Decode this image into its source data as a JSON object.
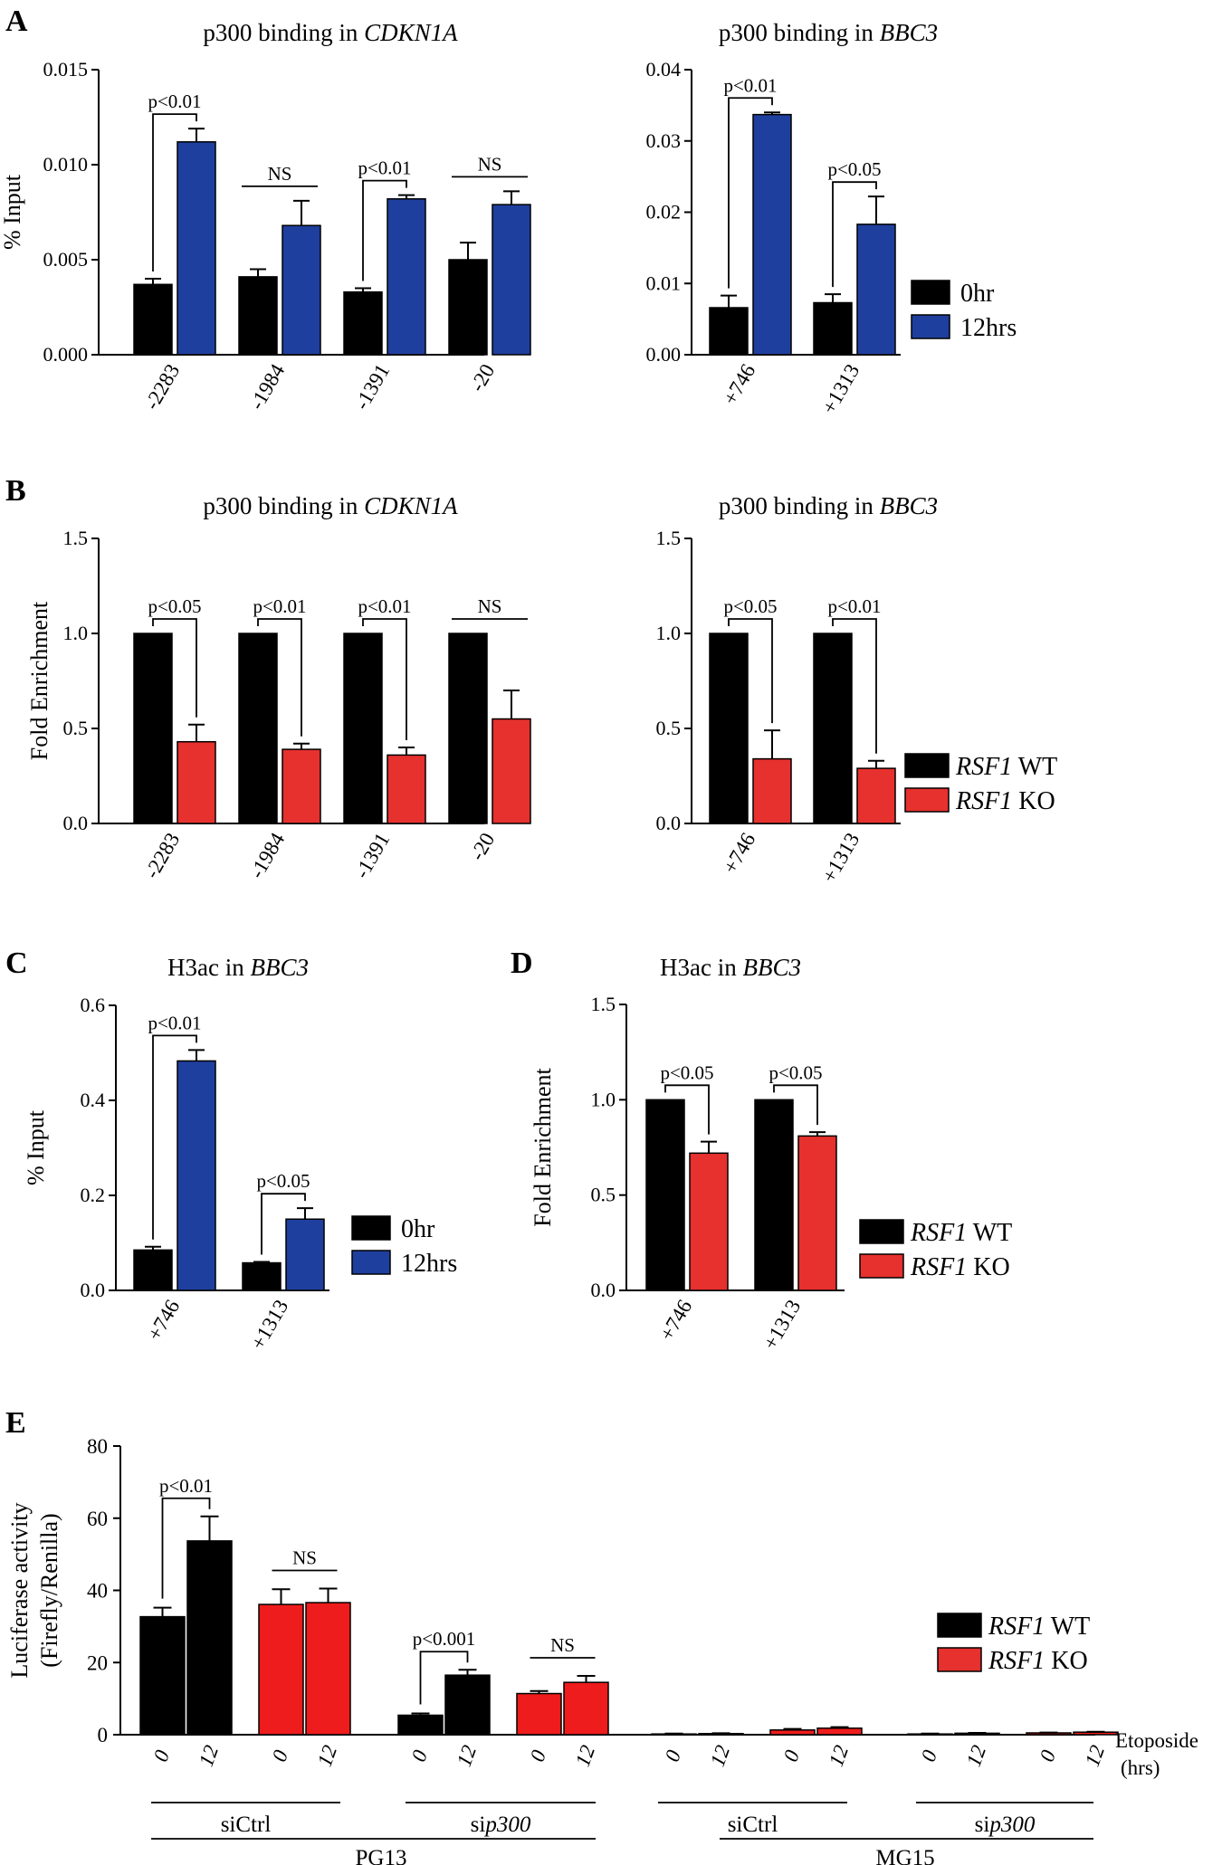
{
  "colors": {
    "black": "#000000",
    "blue": "#1f3f9e",
    "red": "#e6312e",
    "red_e": "#ee1c1c",
    "axis": "#000000"
  },
  "panel_letters": {
    "A": "A",
    "B": "B",
    "C": "C",
    "D": "D",
    "E": "E"
  },
  "chart_data": [
    {
      "id": "A1",
      "panel": "A",
      "type": "bar",
      "title_plain": "p300 binding in ",
      "title_italic": "CDKN1A",
      "ylabel": "% Input",
      "ylim": [
        0,
        0.015
      ],
      "yticks": [
        0,
        0.005,
        0.01,
        0.015
      ],
      "ytick_labels": [
        "0.000",
        "0.005",
        "0.010",
        "0.015"
      ],
      "categories": [
        "-2283",
        "-1984",
        "-1391",
        "-20"
      ],
      "series": [
        {
          "name": "0hr",
          "color": "black",
          "values": [
            0.0037,
            0.0041,
            0.0033,
            0.005
          ],
          "errors": [
            0.0003,
            0.0004,
            0.0002,
            0.0009
          ]
        },
        {
          "name": "12hrs",
          "color": "blue",
          "values": [
            0.0112,
            0.0068,
            0.0082,
            0.0079
          ],
          "errors": [
            0.0007,
            0.0013,
            0.0002,
            0.0007
          ]
        }
      ],
      "annotations": [
        {
          "category": 0,
          "text": "p<0.01",
          "style": "bracket"
        },
        {
          "category": 1,
          "text": "NS",
          "style": "line"
        },
        {
          "category": 2,
          "text": "p<0.01",
          "style": "bracket"
        },
        {
          "category": 3,
          "text": "NS",
          "style": "line"
        }
      ]
    },
    {
      "id": "A2",
      "panel": "A",
      "type": "bar",
      "title_plain": "p300 binding in ",
      "title_italic": "BBC3",
      "ylabel": "",
      "ylim": [
        0,
        0.04
      ],
      "yticks": [
        0,
        0.01,
        0.02,
        0.03,
        0.04
      ],
      "ytick_labels": [
        "0.00",
        "0.01",
        "0.02",
        "0.03",
        "0.04"
      ],
      "categories": [
        "+746",
        "+1313"
      ],
      "series": [
        {
          "name": "0hr",
          "color": "black",
          "values": [
            0.0066,
            0.0073
          ],
          "errors": [
            0.0017,
            0.0012
          ]
        },
        {
          "name": "12hrs",
          "color": "blue",
          "values": [
            0.0337,
            0.0183
          ],
          "errors": [
            0.0003,
            0.0039
          ]
        }
      ],
      "annotations": [
        {
          "category": 0,
          "text": "p<0.01",
          "style": "bracket"
        },
        {
          "category": 1,
          "text": "p<0.05",
          "style": "bracket"
        }
      ]
    },
    {
      "id": "B1",
      "panel": "B",
      "type": "bar",
      "title_plain": "p300 binding in ",
      "title_italic": "CDKN1A",
      "ylabel": "Fold Enrichment",
      "ylim": [
        0,
        1.5
      ],
      "yticks": [
        0,
        0.5,
        1,
        1.5
      ],
      "ytick_labels": [
        "0.0",
        "0.5",
        "1.0",
        "1.5"
      ],
      "categories": [
        "-2283",
        "-1984",
        "-1391",
        "-20"
      ],
      "series": [
        {
          "name": "RSF1 WT",
          "color": "black",
          "values": [
            1.0,
            1.0,
            1.0,
            1.0
          ],
          "errors": [
            0,
            0,
            0,
            0
          ]
        },
        {
          "name": "RSF1 KO",
          "color": "red",
          "values": [
            0.43,
            0.39,
            0.36,
            0.55
          ],
          "errors": [
            0.09,
            0.03,
            0.04,
            0.15
          ]
        }
      ],
      "annotations": [
        {
          "category": 0,
          "text": "p<0.05",
          "style": "bracket"
        },
        {
          "category": 1,
          "text": "p<0.01",
          "style": "bracket"
        },
        {
          "category": 2,
          "text": "p<0.01",
          "style": "bracket"
        },
        {
          "category": 3,
          "text": "NS",
          "style": "line"
        }
      ]
    },
    {
      "id": "B2",
      "panel": "B",
      "type": "bar",
      "title_plain": "p300 binding in ",
      "title_italic": "BBC3",
      "ylabel": "",
      "ylim": [
        0,
        1.5
      ],
      "yticks": [
        0,
        0.5,
        1,
        1.5
      ],
      "ytick_labels": [
        "0.0",
        "0.5",
        "1.0",
        "1.5"
      ],
      "categories": [
        "+746",
        "+1313"
      ],
      "series": [
        {
          "name": "RSF1 WT",
          "color": "black",
          "values": [
            1.0,
            1.0
          ],
          "errors": [
            0,
            0
          ]
        },
        {
          "name": "RSF1 KO",
          "color": "red",
          "values": [
            0.34,
            0.29
          ],
          "errors": [
            0.15,
            0.04
          ]
        }
      ],
      "annotations": [
        {
          "category": 0,
          "text": "p<0.05",
          "style": "bracket"
        },
        {
          "category": 1,
          "text": "p<0.01",
          "style": "bracket"
        }
      ]
    },
    {
      "id": "C",
      "panel": "C",
      "type": "bar",
      "title_plain": "H3ac in ",
      "title_italic": "BBC3",
      "ylabel": "% Input",
      "ylim": [
        0,
        0.6
      ],
      "yticks": [
        0,
        0.2,
        0.4,
        0.6
      ],
      "ytick_labels": [
        "0.0",
        "0.2",
        "0.4",
        "0.6"
      ],
      "categories": [
        "+746",
        "+1313"
      ],
      "series": [
        {
          "name": "0hr",
          "color": "black",
          "values": [
            0.085,
            0.058
          ],
          "errors": [
            0.007,
            0.002
          ]
        },
        {
          "name": "12hrs",
          "color": "blue",
          "values": [
            0.483,
            0.15
          ],
          "errors": [
            0.023,
            0.023
          ]
        }
      ],
      "annotations": [
        {
          "category": 0,
          "text": "p<0.01",
          "style": "bracket"
        },
        {
          "category": 1,
          "text": "p<0.05",
          "style": "bracket"
        }
      ]
    },
    {
      "id": "D",
      "panel": "D",
      "type": "bar",
      "title_plain": "H3ac in ",
      "title_italic": "BBC3",
      "ylabel": "Fold Enrichment",
      "ylim": [
        0,
        1.5
      ],
      "yticks": [
        0,
        0.5,
        1,
        1.5
      ],
      "ytick_labels": [
        "0.0",
        "0.5",
        "1.0",
        "1.5"
      ],
      "categories": [
        "+746",
        "+1313"
      ],
      "series": [
        {
          "name": "RSF1 WT",
          "color": "black",
          "values": [
            1.0,
            1.0
          ],
          "errors": [
            0,
            0
          ]
        },
        {
          "name": "RSF1 KO",
          "color": "red",
          "values": [
            0.72,
            0.81
          ],
          "errors": [
            0.06,
            0.02
          ]
        }
      ],
      "annotations": [
        {
          "category": 0,
          "text": "p<0.05",
          "style": "bracket"
        },
        {
          "category": 1,
          "text": "p<0.05",
          "style": "bracket"
        }
      ]
    },
    {
      "id": "E",
      "panel": "E",
      "type": "bar",
      "ylabel_line1": "Luciferase activity",
      "ylabel_line2": "(Firefly/Renilla)",
      "ylim": [
        0,
        80
      ],
      "yticks": [
        0,
        20,
        40,
        60,
        80
      ],
      "ytick_labels": [
        "0",
        "20",
        "40",
        "60",
        "80"
      ],
      "etoposide_label": "Etoposide",
      "etoposide_unit": "(hrs)",
      "bars": [
        {
          "x": "0",
          "genotype": "RSF1 WT",
          "value": 32.7,
          "error": 2.5
        },
        {
          "x": "12",
          "genotype": "RSF1 WT",
          "value": 53.7,
          "error": 6.8
        },
        {
          "x": "0",
          "genotype": "RSF1 KO",
          "value": 36.1,
          "error": 4.2
        },
        {
          "x": "12",
          "genotype": "RSF1 KO",
          "value": 36.6,
          "error": 3.9
        },
        {
          "x": "0",
          "genotype": "RSF1 WT",
          "value": 5.4,
          "error": 0.5
        },
        {
          "x": "12",
          "genotype": "RSF1 WT",
          "value": 16.5,
          "error": 1.5
        },
        {
          "x": "0",
          "genotype": "RSF1 KO",
          "value": 11.4,
          "error": 0.7
        },
        {
          "x": "12",
          "genotype": "RSF1 KO",
          "value": 14.5,
          "error": 1.8
        },
        {
          "x": "0",
          "genotype": "RSF1 WT",
          "value": 0.2,
          "error": 0.1
        },
        {
          "x": "12",
          "genotype": "RSF1 WT",
          "value": 0.3,
          "error": 0.1
        },
        {
          "x": "0",
          "genotype": "RSF1 KO",
          "value": 1.3,
          "error": 0.3
        },
        {
          "x": "12",
          "genotype": "RSF1 KO",
          "value": 1.8,
          "error": 0.3
        },
        {
          "x": "0",
          "genotype": "RSF1 WT",
          "value": 0.2,
          "error": 0.1
        },
        {
          "x": "12",
          "genotype": "RSF1 WT",
          "value": 0.4,
          "error": 0.1
        },
        {
          "x": "0",
          "genotype": "RSF1 KO",
          "value": 0.5,
          "error": 0.1
        },
        {
          "x": "12",
          "genotype": "RSF1 KO",
          "value": 0.7,
          "error": 0.1
        }
      ],
      "sirna_groups": [
        {
          "plain": "siCtrl",
          "italic": ""
        },
        {
          "plain": "si",
          "italic": "p300"
        },
        {
          "plain": "siCtrl",
          "italic": ""
        },
        {
          "plain": "si",
          "italic": "p300"
        }
      ],
      "reporter_groups": [
        "PG13",
        "MG15"
      ],
      "annotations": [
        {
          "from": 0,
          "to": 1,
          "text": "p<0.01",
          "style": "bracket"
        },
        {
          "from": 2,
          "to": 3,
          "text": "NS",
          "style": "line"
        },
        {
          "from": 4,
          "to": 5,
          "text": "p<0.001",
          "style": "bracket"
        },
        {
          "from": 6,
          "to": 7,
          "text": "NS",
          "style": "line"
        }
      ]
    }
  ],
  "legends": {
    "time": [
      {
        "label": "0hr",
        "color": "black"
      },
      {
        "label": "12hrs",
        "color": "blue"
      }
    ],
    "genotype": [
      {
        "italic": "RSF1",
        "plain": " WT",
        "color": "black"
      },
      {
        "italic": "RSF1",
        "plain": " KO",
        "color": "red"
      }
    ]
  }
}
